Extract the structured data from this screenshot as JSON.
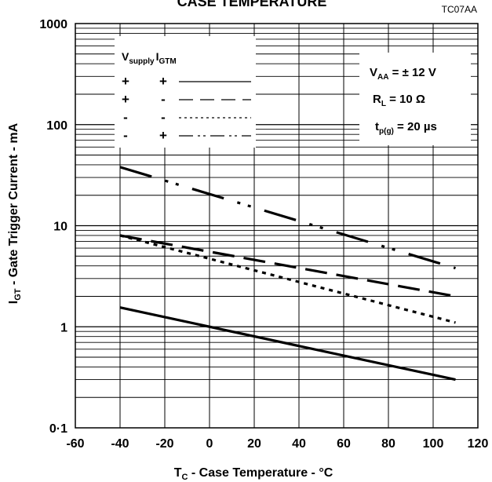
{
  "chart_data": {
    "type": "line",
    "title": "CASE TEMPERATURE",
    "figure_code": "TC07AA",
    "xlabel": {
      "main": "T",
      "sub": "C",
      "rest": " - Case Temperature - °C"
    },
    "ylabel": {
      "main": "I",
      "sub": "GT",
      "rest": " - Gate Trigger Current - mA"
    },
    "x_ticks": [
      -60,
      -40,
      -20,
      0,
      20,
      40,
      60,
      80,
      100,
      120
    ],
    "y_ticks": [
      0.1,
      1,
      10,
      100,
      1000
    ],
    "y_tick_labels": [
      "0·1",
      "1",
      "10",
      "100",
      "1000"
    ],
    "xlim": [
      -60,
      120
    ],
    "ylim": [
      0.1,
      1000
    ],
    "y_scale": "log",
    "grid": true,
    "legend": {
      "position": "top-left",
      "header": {
        "v_main": "V",
        "v_sub": "supply",
        "i_main": "I",
        "i_sub": "GTM"
      },
      "rows": [
        {
          "vsupply": "+",
          "igtm": "+",
          "dash": ""
        },
        {
          "vsupply": "+",
          "igtm": "-",
          "dash": "18 9"
        },
        {
          "vsupply": "-",
          "igtm": "-",
          "dash": "3 4"
        },
        {
          "vsupply": "-",
          "igtm": "+",
          "dash": "18 6 3 4 3 6"
        }
      ]
    },
    "conditions": [
      {
        "main": "V",
        "sub": "AA",
        "rest": " = ± 12 V"
      },
      {
        "main": "R",
        "sub": "L",
        "rest": " = 10 Ω"
      },
      {
        "main": "t",
        "sub": "p(g)",
        "rest": " = 20 µs"
      }
    ],
    "series": [
      {
        "vsupply": "-",
        "igtm": "+",
        "dash": "42 18 4 10 4 18",
        "x": [
          -40,
          110
        ],
        "y": [
          38,
          3.8
        ]
      },
      {
        "vsupply": "+",
        "igtm": "-",
        "dash": "28 12",
        "x": [
          -40,
          110
        ],
        "y": [
          8.0,
          2.0
        ]
      },
      {
        "vsupply": "-",
        "igtm": "-",
        "dash": "5 6",
        "x": [
          -40,
          110
        ],
        "y": [
          8.0,
          1.1
        ]
      },
      {
        "vsupply": "+",
        "igtm": "+",
        "dash": "",
        "x": [
          -40,
          110
        ],
        "y": [
          1.55,
          0.3
        ]
      }
    ]
  }
}
